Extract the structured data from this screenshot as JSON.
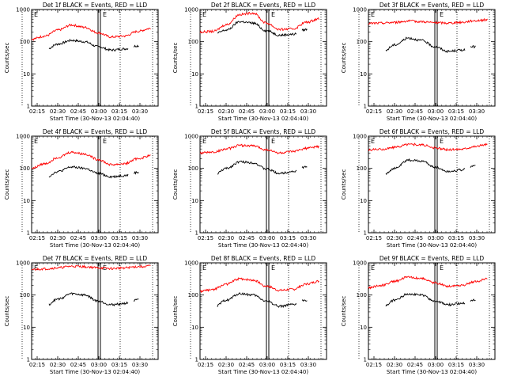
{
  "chart_data": [
    {
      "type": "line",
      "title": "Det 1f BLACK = Events, RED = LLD",
      "xlabel": "Start Time (30-Nov-13 02:04:40)",
      "ylabel": "Counts/sec",
      "yscale": "log",
      "ylim": [
        1,
        1000
      ],
      "x_ticks": [
        "02:15",
        "02:30",
        "02:45",
        "03:00",
        "03:15",
        "03:30"
      ],
      "y_ticks": [
        "1",
        "10",
        "100",
        "1000"
      ],
      "markers": [
        "E",
        "E"
      ],
      "series": [
        {
          "name": "Events",
          "color": "#000000",
          "values": [
            30,
            55,
            85,
            110,
            100,
            70,
            55,
            60,
            75,
            90
          ]
        },
        {
          "name": "LLD",
          "color": "#ff0000",
          "values": [
            120,
            150,
            230,
            330,
            280,
            190,
            140,
            150,
            210,
            260
          ]
        }
      ]
    },
    {
      "type": "line",
      "title": "Det 2f BLACK = Events, RED = LLD",
      "xlabel": "Start Time (30-Nov-13 02:04:40)",
      "ylabel": "Counts/sec",
      "yscale": "log",
      "ylim": [
        1,
        1000
      ],
      "x_ticks": [
        "02:15",
        "02:30",
        "02:45",
        "03:00",
        "03:15",
        "03:30"
      ],
      "y_ticks": [
        "1",
        "10",
        "100",
        "1000"
      ],
      "markers": [
        "E",
        "E"
      ],
      "series": [
        {
          "name": "Events",
          "color": "#000000",
          "values": [
            190,
            170,
            230,
            420,
            380,
            220,
            160,
            170,
            240,
            290
          ]
        },
        {
          "name": "LLD",
          "color": "#ff0000",
          "values": [
            200,
            210,
            340,
            700,
            780,
            380,
            240,
            250,
            400,
            520
          ]
        }
      ]
    },
    {
      "type": "line",
      "title": "Det 3f BLACK = Events, RED = LLD",
      "xlabel": "Start Time (30-Nov-13 02:04:40)",
      "ylabel": "Counts/sec",
      "yscale": "log",
      "ylim": [
        1,
        1000
      ],
      "x_ticks": [
        "02:15",
        "02:30",
        "02:45",
        "03:00",
        "03:15",
        "03:30"
      ],
      "y_ticks": [
        "1",
        "10",
        "100",
        "1000"
      ],
      "markers": [
        "E",
        "E"
      ],
      "series": [
        {
          "name": "Events",
          "color": "#000000",
          "values": [
            25,
            45,
            80,
            130,
            110,
            70,
            50,
            55,
            70,
            85
          ]
        },
        {
          "name": "LLD",
          "color": "#ff0000",
          "values": [
            370,
            380,
            400,
            440,
            420,
            390,
            380,
            400,
            450,
            480
          ]
        }
      ]
    },
    {
      "type": "line",
      "title": "Det 4f BLACK = Events, RED = LLD",
      "xlabel": "Start Time (30-Nov-13 02:04:40)",
      "ylabel": "Counts/sec",
      "yscale": "log",
      "ylim": [
        1,
        1000
      ],
      "x_ticks": [
        "02:15",
        "02:30",
        "02:45",
        "03:00",
        "03:15",
        "03:30"
      ],
      "y_ticks": [
        "1",
        "10",
        "100",
        "1000"
      ],
      "markers": [
        "E",
        "E"
      ],
      "series": [
        {
          "name": "Events",
          "color": "#000000",
          "values": [
            25,
            50,
            80,
            110,
            100,
            70,
            55,
            60,
            75,
            90
          ]
        },
        {
          "name": "LLD",
          "color": "#ff0000",
          "values": [
            100,
            140,
            220,
            320,
            280,
            190,
            130,
            140,
            200,
            250
          ]
        }
      ]
    },
    {
      "type": "line",
      "title": "Det 5f BLACK = Events, RED = LLD",
      "xlabel": "Start Time (30-Nov-13 02:04:40)",
      "ylabel": "Counts/sec",
      "yscale": "log",
      "ylim": [
        1,
        1000
      ],
      "x_ticks": [
        "02:15",
        "02:30",
        "02:45",
        "03:00",
        "03:15",
        "03:30"
      ],
      "y_ticks": [
        "1",
        "10",
        "100",
        "1000"
      ],
      "markers": [
        "E",
        "E"
      ],
      "series": [
        {
          "name": "Events",
          "color": "#000000",
          "values": [
            30,
            60,
            100,
            160,
            150,
            95,
            70,
            80,
            110,
            130
          ]
        },
        {
          "name": "LLD",
          "color": "#ff0000",
          "values": [
            300,
            320,
            400,
            520,
            500,
            380,
            300,
            330,
            420,
            480
          ]
        }
      ]
    },
    {
      "type": "line",
      "title": "Det 6f BLACK = Events, RED = LLD",
      "xlabel": "Start Time (30-Nov-13 02:04:40)",
      "ylabel": "Counts/sec",
      "yscale": "log",
      "ylim": [
        1,
        1000
      ],
      "x_ticks": [
        "02:15",
        "02:30",
        "02:45",
        "03:00",
        "03:15",
        "03:30"
      ],
      "y_ticks": [
        "1",
        "10",
        "100",
        "1000"
      ],
      "markers": [
        "E",
        "E"
      ],
      "series": [
        {
          "name": "Events",
          "color": "#000000",
          "values": [
            30,
            60,
            100,
            180,
            170,
            110,
            80,
            90,
            120,
            150
          ]
        },
        {
          "name": "LLD",
          "color": "#ff0000",
          "values": [
            380,
            390,
            450,
            560,
            540,
            430,
            380,
            400,
            480,
            560
          ]
        }
      ]
    },
    {
      "type": "line",
      "title": "Det 7f BLACK = Events, RED = LLD",
      "xlabel": "Start Time (30-Nov-13 02:04:40)",
      "ylabel": "Counts/sec",
      "yscale": "log",
      "ylim": [
        1,
        1000
      ],
      "x_ticks": [
        "02:15",
        "02:30",
        "02:45",
        "03:00",
        "03:15",
        "03:30"
      ],
      "y_ticks": [
        "1",
        "10",
        "100",
        "1000"
      ],
      "markers": [
        "E",
        "E"
      ],
      "series": [
        {
          "name": "Events",
          "color": "#000000",
          "values": [
            25,
            45,
            75,
            110,
            100,
            65,
            50,
            55,
            70,
            85
          ]
        },
        {
          "name": "LLD",
          "color": "#ff0000",
          "values": [
            620,
            650,
            700,
            780,
            760,
            700,
            660,
            700,
            760,
            800
          ]
        }
      ]
    },
    {
      "type": "line",
      "title": "Det 8f BLACK = Events, RED = LLD",
      "xlabel": "Start Time (30-Nov-13 02:04:40)",
      "ylabel": "Counts/sec",
      "yscale": "log",
      "ylim": [
        1,
        1000
      ],
      "x_ticks": [
        "02:15",
        "02:30",
        "02:45",
        "03:00",
        "03:15",
        "03:30"
      ],
      "y_ticks": [
        "1",
        "10",
        "100",
        "1000"
      ],
      "markers": [
        "E",
        "E"
      ],
      "series": [
        {
          "name": "Events",
          "color": "#000000",
          "values": [
            20,
            40,
            70,
            110,
            100,
            65,
            45,
            50,
            70,
            85
          ]
        },
        {
          "name": "LLD",
          "color": "#ff0000",
          "values": [
            130,
            150,
            220,
            320,
            290,
            190,
            140,
            150,
            220,
            270
          ]
        }
      ]
    },
    {
      "type": "line",
      "title": "Det 9f BLACK = Events, RED = LLD",
      "xlabel": "Start Time (30-Nov-13 02:04:40)",
      "ylabel": "Counts/sec",
      "yscale": "log",
      "ylim": [
        1,
        1000
      ],
      "x_ticks": [
        "02:15",
        "02:30",
        "02:45",
        "03:00",
        "03:15",
        "03:30"
      ],
      "y_ticks": [
        "1",
        "10",
        "100",
        "1000"
      ],
      "markers": [
        "E",
        "E"
      ],
      "series": [
        {
          "name": "Events",
          "color": "#000000",
          "values": [
            20,
            40,
            70,
            110,
            100,
            65,
            50,
            55,
            70,
            80
          ]
        },
        {
          "name": "LLD",
          "color": "#ff0000",
          "values": [
            170,
            200,
            270,
            360,
            330,
            240,
            190,
            200,
            260,
            320
          ]
        }
      ]
    }
  ]
}
